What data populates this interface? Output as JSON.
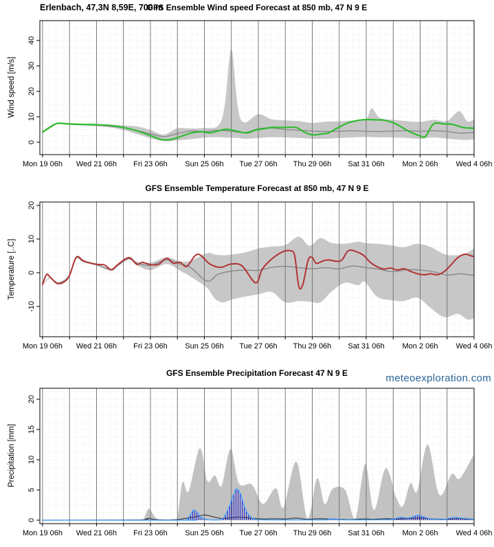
{
  "page": {
    "location_label": "Erlenbach, 47,3N 8,59E, 700 m",
    "watermark": "meteoexploration.com",
    "watermark_color": "#2a6496"
  },
  "chart_data": [
    {
      "id": "wind",
      "type": "line",
      "title": "GFS Ensemble Wind speed Forecast at 850 mb, 47 N 9 E",
      "ylabel": "Wind speed [m/s]",
      "xlabel": "",
      "xlim": [
        -0.1,
        16.0
      ],
      "ylim": [
        -4.86,
        47.8
      ],
      "yticks": [
        0,
        10,
        20,
        30,
        40
      ],
      "minor_y": 2.5,
      "grid": true,
      "xtick_labels": [
        "Mon 19 06h",
        "Wed 21 06h",
        "Fri 23 06h",
        "Sun 25 06h",
        "Tue 27 06h",
        "Thu 29 06h",
        "Sat 31 06h",
        "Mon 2 06h",
        "Wed 4 06h"
      ],
      "xtick_label_days": [
        0,
        2,
        4,
        6,
        8,
        10,
        12,
        14,
        16
      ],
      "series": [
        {
          "name": "ensemble-range",
          "kind": "band",
          "color": "#c7c7c7",
          "x": [
            0,
            0.5,
            1,
            1.5,
            2,
            2.5,
            3,
            3.5,
            4,
            4.5,
            5,
            5.5,
            6,
            6.5,
            6.75,
            7,
            7.25,
            7.5,
            8,
            8.5,
            9,
            9.5,
            10,
            10.5,
            11,
            11.5,
            12,
            12.2,
            12.5,
            13,
            13.5,
            14,
            14.5,
            15,
            15.45,
            15.75,
            16
          ],
          "upper": [
            4.3,
            7.6,
            7.4,
            7.2,
            7.1,
            7.0,
            6.6,
            6.2,
            4.8,
            3.0,
            5.5,
            5.4,
            5.6,
            6.4,
            14,
            36.5,
            13,
            7.8,
            11,
            9.0,
            8.6,
            8.3,
            7.6,
            8.1,
            8.2,
            8.6,
            9.2,
            13.3,
            9.6,
            8.8,
            8.3,
            8.0,
            8.8,
            8.4,
            12.2,
            8.2,
            9.0
          ],
          "lower": [
            3.7,
            7.0,
            6.8,
            6.6,
            6.3,
            5.8,
            4.8,
            3.2,
            1.6,
            0.4,
            0.7,
            1.2,
            1.8,
            2.0,
            1.9,
            1.8,
            1.7,
            1.4,
            1.7,
            2.0,
            1.9,
            1.7,
            1.4,
            1.4,
            1.7,
            1.9,
            2.1,
            2.0,
            1.9,
            1.9,
            1.7,
            1.4,
            1.9,
            1.4,
            1.0,
            0.9,
            1.1
          ]
        },
        {
          "name": "ensemble-mean",
          "kind": "line",
          "color": "#8a8a8a",
          "width": 1.4,
          "x": [
            0,
            0.5,
            1,
            1.5,
            2,
            2.5,
            3,
            3.5,
            4,
            4.5,
            5,
            5.5,
            6,
            6.5,
            7,
            7.5,
            8,
            8.5,
            9,
            9.5,
            10,
            10.5,
            11,
            11.5,
            12,
            12.5,
            13,
            13.5,
            14,
            14.5,
            15,
            15.5,
            16
          ],
          "y": [
            4.1,
            7.3,
            7.1,
            6.9,
            6.7,
            6.3,
            5.7,
            4.6,
            3.3,
            2.2,
            3.4,
            4.4,
            4.2,
            4.7,
            4.3,
            3.8,
            5.3,
            5.6,
            5.0,
            4.7,
            4.4,
            4.2,
            4.3,
            4.5,
            4.3,
            4.2,
            4.4,
            4.5,
            4.3,
            4.5,
            4.2,
            3.6,
            3.9
          ]
        },
        {
          "name": "control-run",
          "kind": "line",
          "color": "#2fbb2f",
          "width": 2.2,
          "x": [
            0,
            0.3,
            0.55,
            1,
            1.5,
            2,
            2.5,
            3,
            3.5,
            4,
            4.4,
            4.7,
            5,
            5.5,
            5.9,
            6.2,
            6.5,
            6.8,
            7.1,
            7.35,
            7.6,
            7.9,
            8.2,
            8.5,
            8.9,
            9.4,
            9.7,
            10,
            10.3,
            10.6,
            10.9,
            11.3,
            11.7,
            12,
            12.4,
            12.7,
            13.1,
            13.6,
            14,
            14.2,
            14.5,
            14.9,
            15.2,
            15.6,
            16
          ],
          "y": [
            4.0,
            6.0,
            7.4,
            7.2,
            7.0,
            6.9,
            6.6,
            5.8,
            4.5,
            2.6,
            1.1,
            1.0,
            1.8,
            3.6,
            4.1,
            3.7,
            4.4,
            5.1,
            4.6,
            4.0,
            3.7,
            4.8,
            5.3,
            5.8,
            5.8,
            5.8,
            4.0,
            2.9,
            3.2,
            3.7,
            5.4,
            7.5,
            8.6,
            8.9,
            8.8,
            8.6,
            7.2,
            4.2,
            2.5,
            2.3,
            7.2,
            7.2,
            7.0,
            5.8,
            5.5
          ]
        }
      ]
    },
    {
      "id": "temperature",
      "type": "line",
      "title": "GFS Ensemble Temperature Forecast at 850 mb, 47 N 9 E",
      "ylabel": "Temperature [..C]",
      "xlabel": "",
      "xlim": [
        -0.1,
        16.0
      ],
      "ylim": [
        -19.0,
        21.0
      ],
      "yticks": [
        -10,
        0,
        10,
        20
      ],
      "minor_y": 2.5,
      "grid": true,
      "xtick_labels": [
        "Mon 19 06h",
        "Wed 21 06h",
        "Fri 23 06h",
        "Sun 25 06h",
        "Tue 27 06h",
        "Thu 29 06h",
        "Sat 31 06h",
        "Mon 2 06h",
        "Wed 4 06h"
      ],
      "xtick_label_days": [
        0,
        2,
        4,
        6,
        8,
        10,
        12,
        14,
        16
      ],
      "series": [
        {
          "name": "ensemble-range",
          "kind": "band",
          "color": "#c7c7c7",
          "x": [
            0,
            0.3,
            0.55,
            1.0,
            1.25,
            1.5,
            2.0,
            2.55,
            2.8,
            3.2,
            3.5,
            4.0,
            4.6,
            5.1,
            5.5,
            6.1,
            6.4,
            6.7,
            7.0,
            7.5,
            8.0,
            8.5,
            9.0,
            9.5,
            9.9,
            10.3,
            10.7,
            11.2,
            11.7,
            11.95,
            12.4,
            12.9,
            13.4,
            13.9,
            14.4,
            14.9,
            15.4,
            15.75,
            16
          ],
          "upper": [
            -3.3,
            -1.3,
            -2.9,
            -0.5,
            4.8,
            3.8,
            2.7,
            1.2,
            2.7,
            4.7,
            3.3,
            3.0,
            4.6,
            3.4,
            3.6,
            5.8,
            5.4,
            5.2,
            5.4,
            6.0,
            7.2,
            7.8,
            8.2,
            10.7,
            8.0,
            10.3,
            8.9,
            8.6,
            9.2,
            8.8,
            8.6,
            8.2,
            7.6,
            8.6,
            7.6,
            5.5,
            5.2,
            6.0,
            7.2
          ],
          "lower": [
            -3.7,
            -1.7,
            -3.4,
            -1.1,
            4.3,
            3.2,
            2.1,
            0.5,
            1.9,
            3.9,
            2.2,
            0.8,
            2.6,
            0.6,
            -1.2,
            -4.5,
            -7.8,
            -8.8,
            -8.0,
            -7.1,
            -6.4,
            -5.7,
            -8.8,
            -8.4,
            -8.6,
            -8.8,
            -5.7,
            -3.0,
            -3.7,
            -2.7,
            -7.1,
            -8.1,
            -8.4,
            -7.4,
            -10.5,
            -13.2,
            -12.2,
            -13.9,
            -13.5
          ]
        },
        {
          "name": "ensemble-mean",
          "kind": "line",
          "color": "#8a8a8a",
          "width": 1.5,
          "x": [
            0,
            0.15,
            0.3,
            0.55,
            0.8,
            1.0,
            1.25,
            1.5,
            2.0,
            2.55,
            2.8,
            3.2,
            3.5,
            4.0,
            4.6,
            5.1,
            5.5,
            6.1,
            6.5,
            7.0,
            7.5,
            8.0,
            8.5,
            9.0,
            9.5,
            10.0,
            10.5,
            11.0,
            11.5,
            12.0,
            12.5,
            13.0,
            13.5,
            14.0,
            14.5,
            15.0,
            15.5,
            16.0
          ],
          "y": [
            -3.5,
            -0.6,
            -1.5,
            -3.0,
            -2.5,
            -0.8,
            4.4,
            3.4,
            2.4,
            1.0,
            2.3,
            4.2,
            2.8,
            2.2,
            3.8,
            2.6,
            1.5,
            -2.5,
            -0.5,
            0.5,
            0.8,
            0.7,
            1.6,
            1.9,
            1.5,
            1.2,
            1.5,
            1.2,
            2.0,
            1.5,
            1.0,
            0.3,
            0.9,
            0.8,
            0.3,
            -0.7,
            -0.3,
            -0.8
          ]
        },
        {
          "name": "control-run",
          "kind": "line",
          "color": "#b23232",
          "width": 2.0,
          "x": [
            0,
            0.15,
            0.3,
            0.55,
            0.8,
            1.0,
            1.25,
            1.5,
            1.7,
            2.0,
            2.3,
            2.55,
            2.8,
            3.2,
            3.5,
            3.7,
            4.0,
            4.3,
            4.6,
            4.85,
            5.1,
            5.35,
            5.75,
            6.2,
            6.6,
            7.0,
            7.4,
            7.9,
            8.15,
            8.5,
            8.9,
            9.2,
            9.35,
            9.5,
            9.65,
            9.85,
            10.0,
            10.15,
            10.4,
            10.6,
            10.9,
            11.1,
            11.3,
            11.45,
            11.65,
            11.9,
            12.15,
            12.4,
            12.65,
            12.9,
            13.15,
            13.4,
            13.65,
            13.9,
            14.15,
            14.4,
            14.65,
            14.9,
            15.15,
            15.4,
            15.65,
            15.9,
            16
          ],
          "y": [
            -3.5,
            -0.5,
            -1.5,
            -3.2,
            -2.7,
            -0.8,
            4.6,
            3.6,
            3.0,
            2.5,
            2.3,
            0.9,
            2.5,
            4.5,
            2.5,
            3.1,
            2.4,
            2.5,
            4.3,
            2.8,
            3.1,
            1.9,
            5.5,
            2.6,
            1.6,
            2.6,
            2.0,
            -3.0,
            1.1,
            4.1,
            6.2,
            6.5,
            5.0,
            -4.0,
            -3.5,
            3.8,
            4.5,
            2.8,
            3.5,
            3.8,
            3.4,
            3.8,
            6.3,
            6.7,
            6.2,
            5.2,
            3.1,
            1.8,
            1.1,
            1.4,
            0.8,
            1.2,
            0.4,
            -0.3,
            -0.6,
            -0.3,
            -0.6,
            0.4,
            2.4,
            4.5,
            5.5,
            5.0,
            4.8
          ]
        }
      ]
    },
    {
      "id": "precipitation",
      "type": "area",
      "title": "GFS Ensemble Precipitation Forecast 47 N 9 E",
      "ylabel": "Precipitation [mm]",
      "xlabel": "",
      "xlim": [
        -0.1,
        16.0
      ],
      "ylim": [
        -0.57,
        21.82
      ],
      "yticks": [
        0,
        5,
        10,
        15,
        20
      ],
      "minor_y": 1.25,
      "grid": true,
      "xtick_labels": [
        "Mon 19 06h",
        "Wed 21 06h",
        "Fri 23 06h",
        "Sun 25 06h",
        "Tue 27 06h",
        "Thu 29 06h",
        "Sat 31 06h",
        "Mon 2 06h",
        "Wed 4 06h"
      ],
      "xtick_label_days": [
        0,
        2,
        4,
        6,
        8,
        10,
        12,
        14,
        16
      ],
      "series": [
        {
          "name": "ensemble-max",
          "kind": "area",
          "color": "#c2c2c2",
          "x": [
            0,
            3.4,
            3.6,
            3.77,
            3.94,
            4.22,
            4.53,
            4.83,
            5.0,
            5.19,
            5.42,
            5.83,
            6.11,
            6.39,
            6.64,
            6.97,
            7.28,
            7.76,
            8.17,
            8.65,
            8.93,
            9.41,
            9.82,
            10.18,
            10.46,
            10.76,
            11.22,
            11.6,
            11.96,
            12.29,
            12.72,
            13.11,
            13.36,
            13.64,
            13.89,
            14.28,
            14.71,
            15.17,
            15.47,
            15.98
          ],
          "y": [
            0,
            0,
            0.1,
            0.4,
            1.9,
            0.3,
            0.05,
            0.2,
            0.5,
            6.3,
            4.8,
            11.9,
            6.5,
            7.4,
            5.7,
            11.8,
            6.1,
            5.9,
            2.7,
            5.3,
            2.1,
            9.7,
            0.3,
            6.9,
            2.7,
            5.2,
            5.0,
            0.3,
            9.3,
            1.7,
            8.6,
            3.8,
            2.3,
            6.1,
            4.8,
            12.5,
            4.2,
            7.6,
            6.9,
            10.8
          ]
        },
        {
          "name": "ensemble-mean",
          "kind": "line",
          "color": "#3c3c3c",
          "width": 1.2,
          "x": [
            0,
            3.6,
            3.8,
            3.95,
            4.1,
            4.5,
            5.0,
            5.3,
            5.6,
            5.9,
            6.05,
            6.3,
            6.6,
            6.9,
            7.2,
            7.5,
            7.8,
            8.2,
            8.6,
            9.0,
            9.4,
            9.8,
            10.2,
            10.6,
            11.0,
            11.4,
            11.9,
            12.3,
            12.7,
            13.1,
            13.6,
            14.0,
            14.4,
            14.9,
            15.4,
            15.8,
            16
          ],
          "y": [
            0,
            0.05,
            0.15,
            0.3,
            0.15,
            0.05,
            0.1,
            0.3,
            0.5,
            0.8,
            0.85,
            0.6,
            0.3,
            0.35,
            0.5,
            0.45,
            0.3,
            0.2,
            0.25,
            0.2,
            0.35,
            0.15,
            0.25,
            0.2,
            0.15,
            0.1,
            0.2,
            0.15,
            0.25,
            0.2,
            0.3,
            0.35,
            0.25,
            0.15,
            0.25,
            0.2,
            0.15
          ]
        },
        {
          "name": "control-run",
          "kind": "area-hatch",
          "color": "#2424cc",
          "outline": "#3f9fff",
          "width": 1.3,
          "x": [
            0,
            5.3,
            5.35,
            5.5,
            5.6,
            5.75,
            5.9,
            6.1,
            6.5,
            6.7,
            6.9,
            7.1,
            7.2,
            7.35,
            7.5,
            7.7,
            7.9,
            8.2,
            10.4,
            10.6,
            10.8,
            11.0,
            11.3,
            12.8,
            13.1,
            13.3,
            13.5,
            13.7,
            13.9,
            14.1,
            14.3,
            14.6,
            14.9,
            15.1,
            15.3,
            15.5,
            15.8,
            16
          ],
          "y": [
            0,
            0,
            0.1,
            1.0,
            1.7,
            1.2,
            0.4,
            0.1,
            0.05,
            0.3,
            2.0,
            4.4,
            5.2,
            4.2,
            2.0,
            0.6,
            0.15,
            0.05,
            0.05,
            0.15,
            0.2,
            0.1,
            0.05,
            0.1,
            0.3,
            0.5,
            0.35,
            0.5,
            0.8,
            0.6,
            0.3,
            0.15,
            0.1,
            0.35,
            0.45,
            0.35,
            0.25,
            0.1
          ]
        }
      ]
    }
  ]
}
